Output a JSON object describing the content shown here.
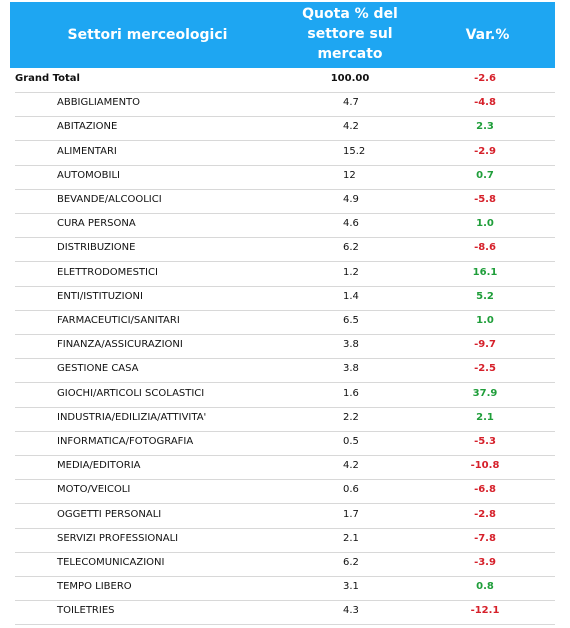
{
  "header": {
    "columns": [
      "Settori merceologici",
      "Quota % del settore sul mercato",
      "Var.%"
    ]
  },
  "total": {
    "label": "Grand Total",
    "quota": "100.00",
    "var": "-2.6"
  },
  "rows": [
    [
      "ABBIGLIAMENTO",
      "4.7",
      "-4.8"
    ],
    [
      "ABITAZIONE",
      "4.2",
      "2.3"
    ],
    [
      "ALIMENTARI",
      "15.2",
      "-2.9"
    ],
    [
      "AUTOMOBILI",
      "12",
      "0.7"
    ],
    [
      "BEVANDE/ALCOOLICI",
      "4.9",
      "-5.8"
    ],
    [
      "CURA PERSONA",
      "4.6",
      "1.0"
    ],
    [
      "DISTRIBUZIONE",
      "6.2",
      "-8.6"
    ],
    [
      "ELETTRODOMESTICI",
      "1.2",
      "16.1"
    ],
    [
      "ENTI/ISTITUZIONI",
      "1.4",
      "5.2"
    ],
    [
      "FARMACEUTICI/SANITARI",
      "6.5",
      "1.0"
    ],
    [
      "FINANZA/ASSICURAZIONI",
      "3.8",
      "-9.7"
    ],
    [
      "GESTIONE CASA",
      "3.8",
      "-2.5"
    ],
    [
      "GIOCHI/ARTICOLI SCOLASTICI",
      "1.6",
      "37.9"
    ],
    [
      "INDUSTRIA/EDILIZIA/ATTIVITA'",
      "2.2",
      "2.1"
    ],
    [
      "INFORMATICA/FOTOGRAFIA",
      "0.5",
      "-5.3"
    ],
    [
      "MEDIA/EDITORIA",
      "4.2",
      "-10.8"
    ],
    [
      "MOTO/VEICOLI",
      "0.6",
      "-6.8"
    ],
    [
      "OGGETTI PERSONALI",
      "1.7",
      "-2.8"
    ],
    [
      "SERVIZI PROFESSIONALI",
      "2.1",
      "-7.8"
    ],
    [
      "TELECOMUNICAZIONI",
      "6.2",
      "-3.9"
    ],
    [
      "TEMPO LIBERO",
      "3.1",
      "0.8"
    ],
    [
      "TOILETRIES",
      "4.3",
      "-12.1"
    ]
  ],
  "colors": {
    "header": "#1ea6f2",
    "negative": "#d6202a",
    "positive": "#1f9e3a"
  }
}
